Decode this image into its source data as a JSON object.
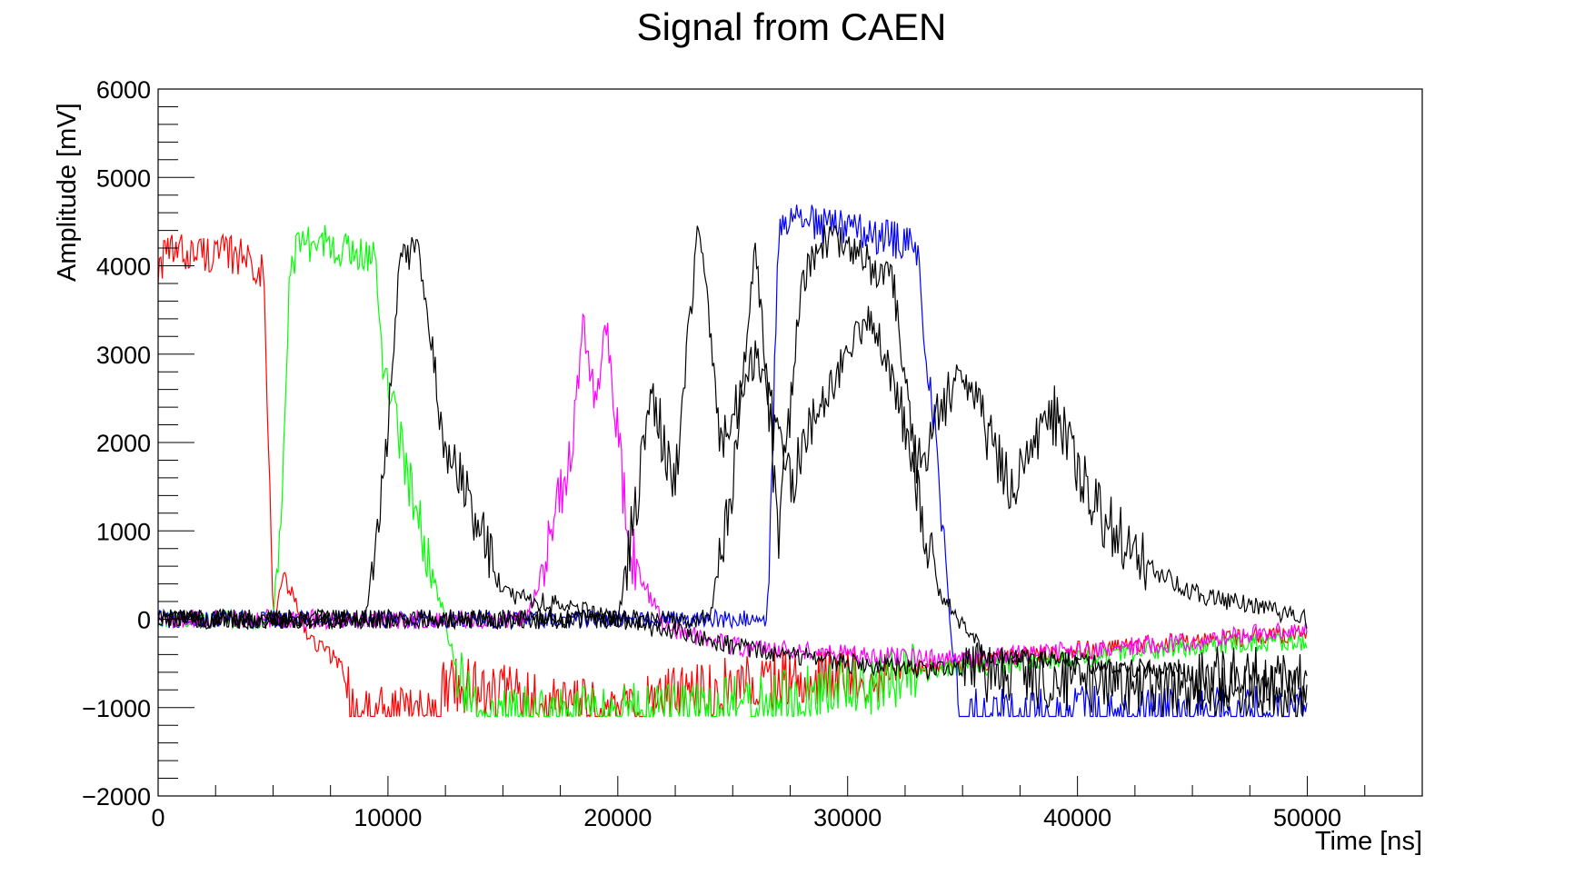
{
  "chart_data": {
    "type": "line",
    "title": "Signal from CAEN",
    "xlabel": "Time [ns]",
    "ylabel": "Amplitude [mV]",
    "xlim": [
      0,
      55000
    ],
    "ylim": [
      -2000,
      6000
    ],
    "x_ticks": [
      0,
      10000,
      20000,
      30000,
      40000,
      50000
    ],
    "x_tick_labels": [
      "0",
      "10000",
      "20000",
      "30000",
      "40000",
      "50000"
    ],
    "y_ticks": [
      -2000,
      -1000,
      0,
      1000,
      2000,
      3000,
      4000,
      5000,
      6000
    ],
    "y_tick_labels": [
      "−2000",
      "−1000",
      "0",
      "1000",
      "2000",
      "3000",
      "4000",
      "5000",
      "6000"
    ],
    "grid": false,
    "legend": "none",
    "series": [
      {
        "color": "#ff0000",
        "x": [
          0,
          500,
          2000,
          4000,
          4600,
          5000,
          5500,
          6500,
          8000,
          8500,
          10000,
          12300,
          12400,
          20000,
          22000,
          26000,
          30000,
          35000,
          40000,
          45000,
          50000
        ],
        "y": [
          4000,
          4150,
          4150,
          4100,
          3900,
          0,
          500,
          -200,
          -500,
          -1100,
          -1100,
          -1100,
          -700,
          -1100,
          -900,
          -700,
          -650,
          -500,
          -350,
          -250,
          -150
        ]
      },
      {
        "color": "#00ff00",
        "x": [
          0,
          5000,
          5400,
          5700,
          6000,
          7000,
          8000,
          9500,
          9700,
          10500,
          11500,
          12500,
          13000,
          14000,
          18000,
          22000,
          26000,
          30000,
          33000,
          35000,
          40000,
          45000,
          50000
        ],
        "y": [
          0,
          0,
          1500,
          3800,
          4200,
          4300,
          4200,
          4100,
          3000,
          2000,
          1000,
          0,
          -600,
          -1100,
          -1100,
          -1050,
          -950,
          -800,
          -600,
          -550,
          -450,
          -300,
          -250
        ]
      },
      {
        "color": "#0000ff",
        "x": [
          0,
          26500,
          27000,
          28000,
          29000,
          32000,
          33000,
          34000,
          34500,
          35000,
          36000,
          40000,
          45000,
          50000
        ],
        "y": [
          0,
          0,
          4400,
          4500,
          4450,
          4300,
          4200,
          1500,
          -200,
          -1100,
          -1100,
          -1100,
          -1100,
          -1100
        ]
      },
      {
        "color": "#ff00ff",
        "x": [
          0,
          16000,
          17000,
          18000,
          18500,
          19000,
          19500,
          20500,
          22000,
          25000,
          30000,
          35000,
          40000,
          45000,
          50000
        ],
        "y": [
          0,
          0,
          800,
          2000,
          3300,
          2500,
          3300,
          800,
          -100,
          -300,
          -400,
          -450,
          -350,
          -250,
          -100
        ]
      },
      {
        "color": "#000000",
        "x": [
          0,
          9000,
          9800,
          10500,
          11300,
          12500,
          15000,
          20000,
          25000,
          30000,
          35000,
          40000,
          45000,
          50000
        ],
        "y": [
          0,
          0,
          1500,
          4000,
          4200,
          2000,
          300,
          0,
          -300,
          -500,
          -600,
          -700,
          -800,
          -900
        ]
      },
      {
        "color": "#000000",
        "x": [
          0,
          24000,
          25000,
          26000,
          27000,
          28000,
          29000,
          30000,
          31000,
          32000,
          33000,
          34000,
          36000,
          40000,
          45000,
          50000
        ],
        "y": [
          0,
          0,
          1500,
          4200,
          1000,
          3800,
          4300,
          4200,
          4000,
          3800,
          1500,
          300,
          -400,
          -500,
          -600,
          -700
        ]
      },
      {
        "color": "#000000",
        "x": [
          0,
          20000,
          21500,
          22500,
          23500,
          24500,
          26000,
          27500,
          29000,
          31000,
          33000,
          35000,
          37000,
          39000,
          41000,
          43000,
          45000,
          50000
        ],
        "y": [
          0,
          0,
          2500,
          1500,
          4500,
          2000,
          3000,
          1500,
          2500,
          3500,
          1800,
          2800,
          1500,
          2300,
          1200,
          600,
          300,
          0
        ]
      }
    ]
  }
}
